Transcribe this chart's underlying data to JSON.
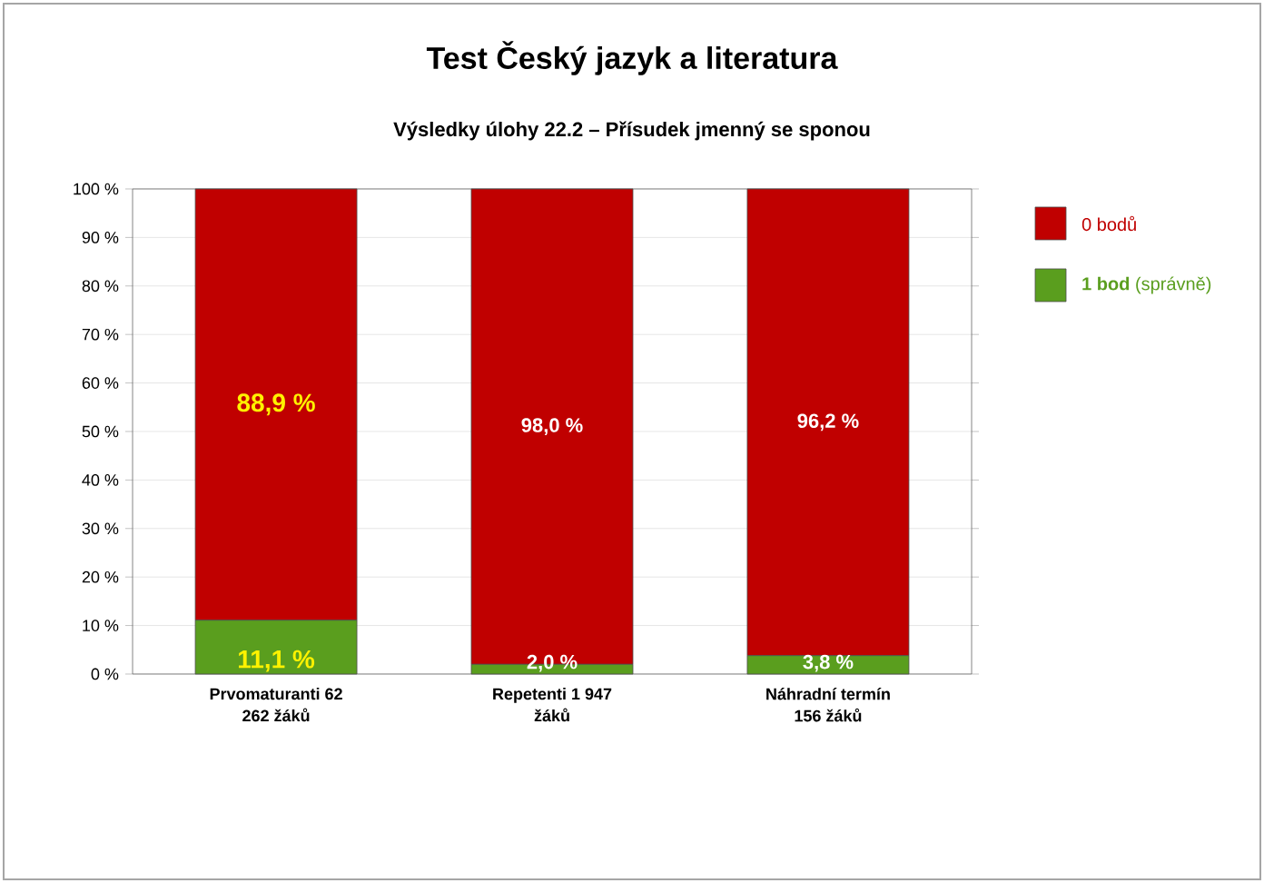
{
  "chart_data": {
    "type": "bar",
    "stacked": true,
    "title": "Test Český jazyk a literatura",
    "subtitle": "Výsledky úlohy 22.2 – Přísudek jmenný se sponou",
    "categories": [
      "Prvomaturanti 62 262 žáků",
      "Repetenti 1 947 žáků",
      "Náhradní termín 156 žáků"
    ],
    "series": [
      {
        "name": "**1 bod** (správně)",
        "color": "#5a9e1e",
        "values": [
          11.1,
          2.0,
          3.8
        ],
        "value_labels": [
          "11,1 %",
          "2,0 %",
          "3,8 %"
        ]
      },
      {
        "name": "0 bodů",
        "color": "#c00000",
        "values": [
          88.9,
          98.0,
          96.2
        ],
        "value_labels": [
          "88,9 %",
          "98,0 %",
          "96,2 %"
        ]
      }
    ],
    "ylim": [
      0,
      100
    ],
    "yticks": [
      {
        "value": 0,
        "label": "0 %"
      },
      {
        "value": 10,
        "label": "10 %"
      },
      {
        "value": 20,
        "label": "20 %"
      },
      {
        "value": 30,
        "label": "30 %"
      },
      {
        "value": 40,
        "label": "40 %"
      },
      {
        "value": 50,
        "label": "50 %"
      },
      {
        "value": 60,
        "label": "60 %"
      },
      {
        "value": 70,
        "label": "70 %"
      },
      {
        "value": 80,
        "label": "80 %"
      },
      {
        "value": 90,
        "label": "90 %"
      },
      {
        "value": 100,
        "label": "100 %"
      }
    ],
    "grid": "y",
    "legend": "top right"
  }
}
